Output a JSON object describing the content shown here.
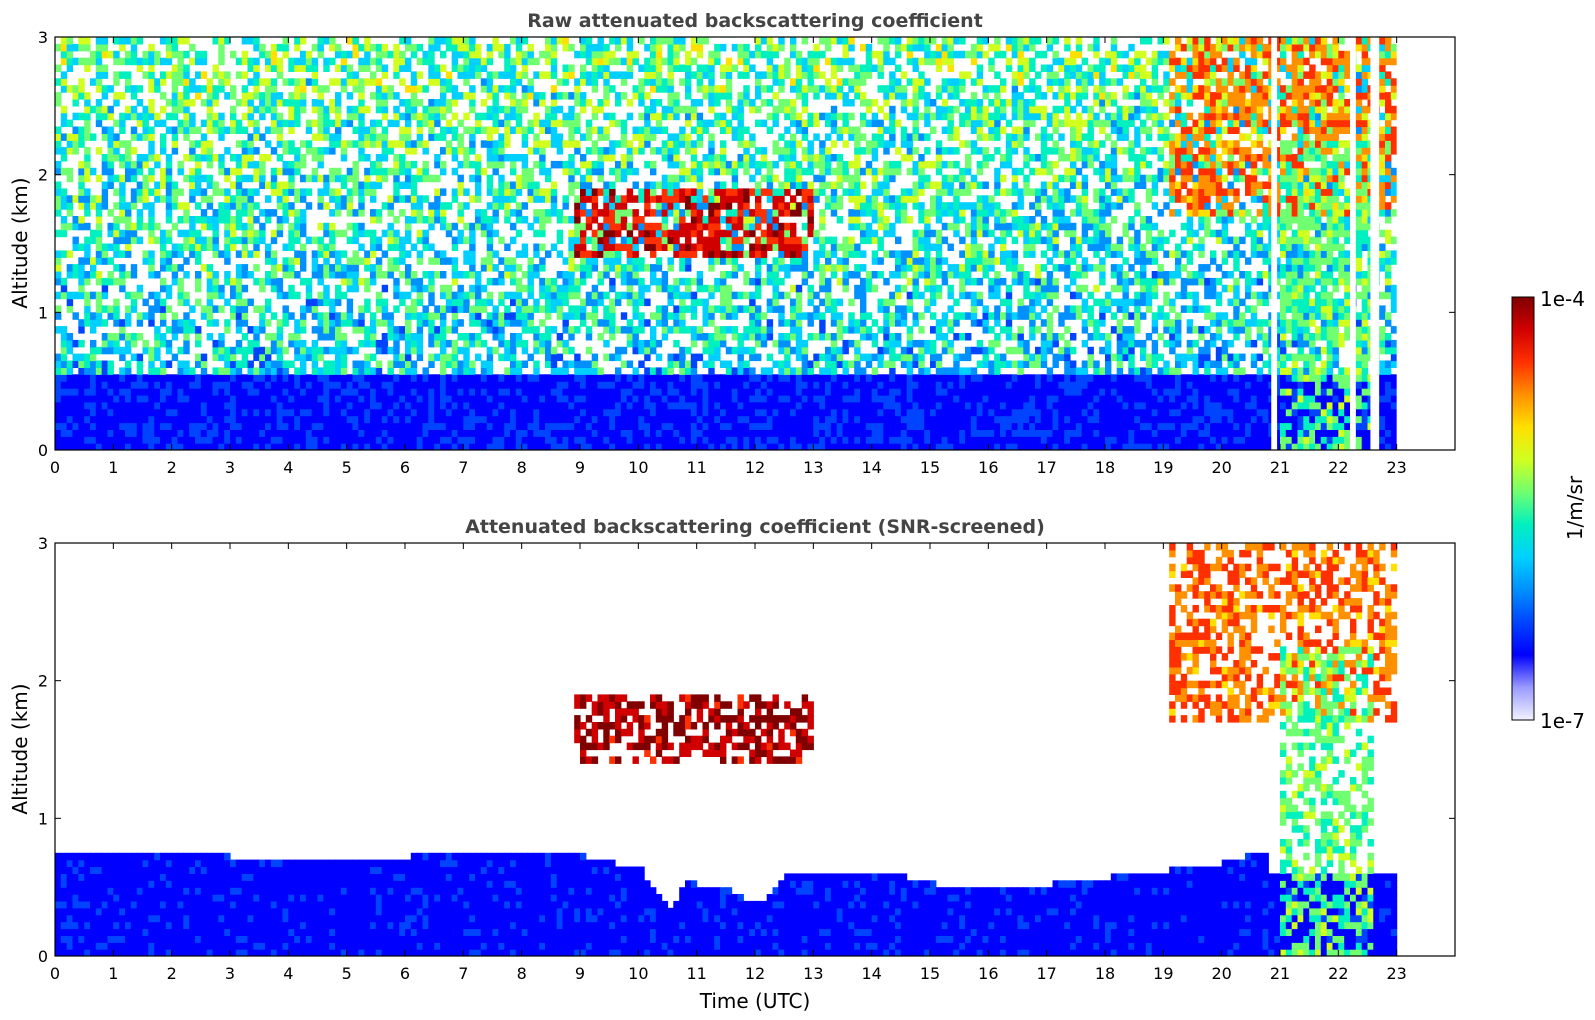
{
  "colors": {
    "colormap": [
      "#f2f2ff",
      "#9a9aff",
      "#0000ff",
      "#0044ff",
      "#0090ff",
      "#00d0ff",
      "#00f0c0",
      "#70ff70",
      "#d0ff20",
      "#ffe000",
      "#ff9000",
      "#ff3000",
      "#d00000",
      "#800000"
    ],
    "saturated": "#000000",
    "frame": "#000000",
    "title": "#444444"
  },
  "chart_data": [
    {
      "type": "heatmap",
      "title": "Raw attenuated backscattering coefficient",
      "ylabel": "Altitude (km)",
      "xlabel": "",
      "xlim": [
        0,
        24
      ],
      "ylim": [
        0,
        3
      ],
      "xticks": [
        "0",
        "1",
        "2",
        "3",
        "4",
        "5",
        "6",
        "7",
        "8",
        "9",
        "10",
        "11",
        "12",
        "13",
        "14",
        "15",
        "16",
        "17",
        "18",
        "19",
        "20",
        "21",
        "22",
        "23"
      ],
      "yticks": [
        "0",
        "1",
        "2",
        "3"
      ],
      "data_gaps_utc": [
        [
          20.85,
          20.95
        ],
        [
          22.2,
          22.3
        ],
        [
          22.55,
          22.7
        ],
        [
          23.0,
          24.0
        ]
      ],
      "features": [
        {
          "name": "boundary-layer",
          "x": [
            0,
            23
          ],
          "y": [
            0,
            0.5
          ],
          "level": 0.2
        },
        {
          "name": "clear-sky-noise",
          "x": [
            0,
            19
          ],
          "y": [
            0.5,
            3
          ],
          "level": 0.4
        },
        {
          "name": "mid-level-cloud-patches",
          "x": [
            8.8,
            12.9
          ],
          "y": [
            1.4,
            1.9
          ],
          "level": 0.95
        },
        {
          "name": "high-cloud",
          "x": [
            19.1,
            23
          ],
          "y": [
            1.7,
            3
          ],
          "level": 0.85
        },
        {
          "name": "precipitation-columns",
          "x": [
            21.0,
            22.6
          ],
          "y": [
            0,
            2.2
          ],
          "level": 0.6
        }
      ]
    },
    {
      "type": "heatmap",
      "title": "Attenuated backscattering coefficient (SNR-screened)",
      "ylabel": "Altitude (km)",
      "xlabel": "Time (UTC)",
      "xlim": [
        0,
        24
      ],
      "ylim": [
        0,
        3
      ],
      "xticks": [
        "0",
        "1",
        "2",
        "3",
        "4",
        "5",
        "6",
        "7",
        "8",
        "9",
        "10",
        "11",
        "12",
        "13",
        "14",
        "15",
        "16",
        "17",
        "18",
        "19",
        "20",
        "21",
        "22",
        "23"
      ],
      "yticks": [
        "0",
        "1",
        "2",
        "3"
      ],
      "boundary_layer_top_km": {
        "time": [
          0,
          2,
          4,
          6,
          8,
          9,
          10,
          10.5,
          10.8,
          11,
          11.5,
          12,
          12.5,
          13,
          14,
          15,
          16,
          17,
          18,
          19,
          20,
          20.8
        ],
        "top": [
          0.75,
          0.72,
          0.68,
          0.7,
          0.72,
          0.7,
          0.6,
          0.3,
          0.55,
          0.45,
          0.45,
          0.35,
          0.6,
          0.55,
          0.6,
          0.5,
          0.45,
          0.5,
          0.55,
          0.6,
          0.65,
          0.75
        ]
      },
      "features": [
        {
          "name": "mid-level-cloud-patches",
          "x": [
            8.8,
            12.9
          ],
          "y": [
            1.4,
            1.9
          ],
          "level": 1.0
        },
        {
          "name": "high-cloud",
          "x": [
            19.1,
            23
          ],
          "y": [
            1.7,
            3
          ],
          "level": 0.85
        },
        {
          "name": "precipitation-columns",
          "x": [
            21.0,
            22.6
          ],
          "y": [
            0,
            2.2
          ],
          "level": 0.6
        }
      ]
    }
  ],
  "colorbar": {
    "label": "1/m/sr",
    "max_label": "1e-4",
    "min_label": "1e-7"
  }
}
